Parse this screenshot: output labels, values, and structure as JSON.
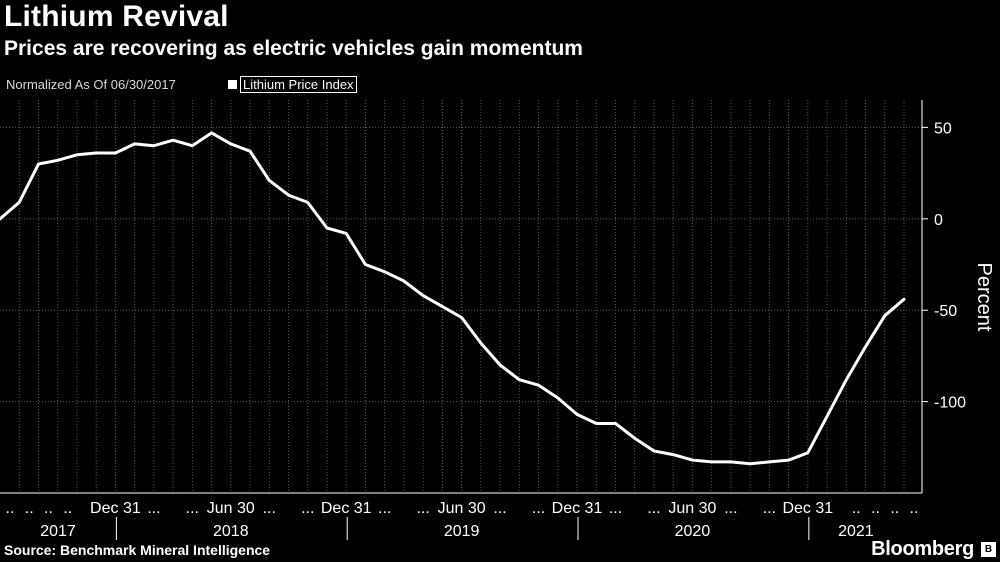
{
  "header": {
    "title": "Lithium Revival",
    "subtitle": "Prices are recovering as electric vehicles gain momentum",
    "note": "Normalized As Of 06/30/2017"
  },
  "legend": {
    "label": "Lithium Price Index",
    "color": "#ffffff"
  },
  "footer": {
    "source": "Source: Benchmark Mineral Intelligence",
    "brand": "Bloomberg"
  },
  "colors": {
    "background": "#000000",
    "line": "#ffffff",
    "grid": "#5a5a5a",
    "text": "#ffffff"
  },
  "chart_data": {
    "type": "line",
    "title": "Lithium Revival",
    "subtitle": "Prices are recovering as electric vehicles gain momentum",
    "ylabel": "Percent",
    "ylim": [
      -150,
      65
    ],
    "yticks": [
      50,
      0,
      -50,
      -100
    ],
    "y_axis_position": "right",
    "grid": true,
    "legend_position": "top-left",
    "x_tick_labels": [
      "Dec 31",
      "Jun 30",
      "Dec 31",
      "Jun 30",
      "Dec 31",
      "Jun 30",
      "Dec 31"
    ],
    "x_year_labels": [
      "2017",
      "2018",
      "2019",
      "2020",
      "2021"
    ],
    "series": [
      {
        "name": "Lithium Price Index",
        "x": [
          "2017-06-30",
          "2017-07-31",
          "2017-08-31",
          "2017-09-30",
          "2017-10-31",
          "2017-11-30",
          "2017-12-31",
          "2018-01-31",
          "2018-02-28",
          "2018-03-31",
          "2018-04-30",
          "2018-05-31",
          "2018-06-30",
          "2018-07-31",
          "2018-08-31",
          "2018-09-30",
          "2018-10-31",
          "2018-11-30",
          "2018-12-31",
          "2019-01-31",
          "2019-02-28",
          "2019-03-31",
          "2019-04-30",
          "2019-05-31",
          "2019-06-30",
          "2019-07-31",
          "2019-08-31",
          "2019-09-30",
          "2019-10-31",
          "2019-11-30",
          "2019-12-31",
          "2020-01-31",
          "2020-02-29",
          "2020-03-31",
          "2020-04-30",
          "2020-05-31",
          "2020-06-30",
          "2020-07-31",
          "2020-08-31",
          "2020-09-30",
          "2020-10-31",
          "2020-11-30",
          "2020-12-31",
          "2021-01-31",
          "2021-02-28",
          "2021-03-31",
          "2021-04-30",
          "2021-05-31"
        ],
        "values": [
          0,
          9,
          30,
          32,
          35,
          36,
          36,
          41,
          40,
          43,
          40,
          47,
          41,
          37,
          21,
          13,
          9,
          -5,
          -8,
          -25,
          -29,
          -34,
          -42,
          -48,
          -54,
          -68,
          -80,
          -88,
          -91,
          -98,
          -107,
          -112,
          -112,
          -120,
          -127,
          -129,
          -132,
          -133,
          -133,
          -134,
          -133,
          -132,
          -128,
          -108,
          -88,
          -70,
          -53,
          -44
        ]
      }
    ]
  }
}
